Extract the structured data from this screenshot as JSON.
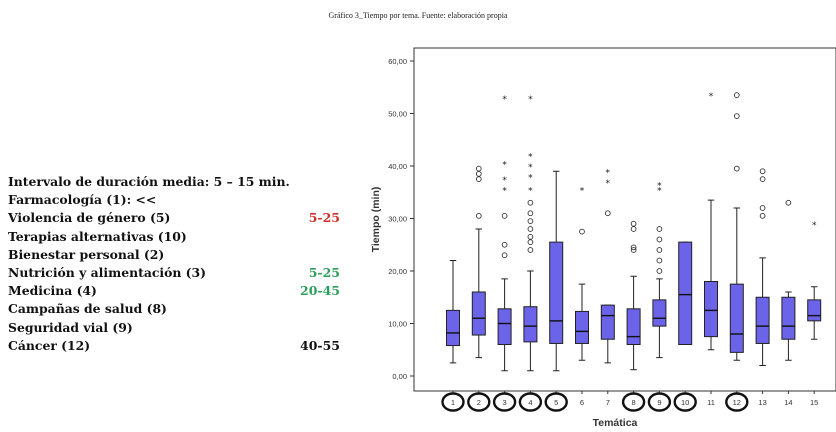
{
  "caption": "Gráfico 3_Tiempo por tema. Fuente: elaboración propia",
  "summary": {
    "interval_label": "Intervalo de duración media: 5 – 15 min.",
    "topics": [
      "Farmacología (1): <<",
      "Violencia de género (5)",
      "Terapias alternativas (10)",
      "Bienestar personal (2)",
      "Nutrición y alimentación (3)",
      "Medicina (4)",
      "Campañas de salud (8)",
      "Seguridad vial (9)",
      "Cáncer (12)"
    ],
    "ranges": [
      {
        "label": "5-25",
        "color": "#d0312d",
        "row": 2
      },
      {
        "label": "5-25",
        "color": "#2e9e5b",
        "row": 5
      },
      {
        "label": "20-45",
        "color": "#2e9e5b",
        "row": 6
      },
      {
        "label": "40-55",
        "color": "#111111",
        "row": 9
      }
    ]
  },
  "chart_data": {
    "type": "boxplot",
    "xlabel": "Temática",
    "ylabel": "Tiempo (min)",
    "ylim": [
      0,
      60
    ],
    "yticks": [
      "0,00",
      "10,00",
      "20,00",
      "30,00",
      "40,00",
      "50,00",
      "60,00"
    ],
    "box_color": "#6b63e8",
    "circled_categories": [
      "1",
      "2",
      "3",
      "4",
      "5",
      "8",
      "9",
      "10",
      "12"
    ],
    "categories": [
      "1",
      "2",
      "3",
      "4",
      "5",
      "6",
      "7",
      "8",
      "9",
      "10",
      "11",
      "12",
      "13",
      "14",
      "15"
    ],
    "boxes": [
      {
        "cat": "1",
        "min": 2.5,
        "q1": 5.8,
        "median": 8.2,
        "q3": 12.5,
        "max": 22,
        "outliers_circle": [],
        "outliers_star": []
      },
      {
        "cat": "2",
        "min": 3.5,
        "q1": 7.8,
        "median": 11,
        "q3": 16,
        "max": 28,
        "outliers_circle": [
          30.5,
          37.5,
          38.5,
          39.5
        ],
        "outliers_star": []
      },
      {
        "cat": "3",
        "min": 1,
        "q1": 6,
        "median": 10,
        "q3": 12.8,
        "max": 18.5,
        "outliers_circle": [
          23,
          25,
          30.5
        ],
        "outliers_star": [
          35.5,
          37.5,
          40.5,
          53
        ]
      },
      {
        "cat": "4",
        "min": 1,
        "q1": 6.5,
        "median": 9.5,
        "q3": 13.2,
        "max": 20,
        "outliers_circle": [
          24,
          25.5,
          26.5,
          28,
          29.5,
          31,
          33
        ],
        "outliers_star": [
          35.5,
          38,
          40,
          42,
          53
        ]
      },
      {
        "cat": "5",
        "min": 1,
        "q1": 6.2,
        "median": 10.5,
        "q3": 25.5,
        "max": 39,
        "outliers_circle": [],
        "outliers_star": []
      },
      {
        "cat": "6",
        "min": 3,
        "q1": 6.2,
        "median": 8.5,
        "q3": 12.3,
        "max": 17.5,
        "outliers_circle": [
          27.5
        ],
        "outliers_star": [
          35.5
        ]
      },
      {
        "cat": "7",
        "min": 2.5,
        "q1": 7,
        "median": 11.5,
        "q3": 13.5,
        "max": 13.5,
        "outliers_circle": [
          31
        ],
        "outliers_star": [
          37,
          39
        ]
      },
      {
        "cat": "8",
        "min": 1.2,
        "q1": 6,
        "median": 7.5,
        "q3": 12.8,
        "max": 19,
        "outliers_circle": [
          24,
          24.5,
          28,
          29
        ],
        "outliers_star": []
      },
      {
        "cat": "9",
        "min": 3.5,
        "q1": 9.5,
        "median": 11,
        "q3": 14.5,
        "max": 18.5,
        "outliers_circle": [
          20,
          22,
          24,
          26,
          28
        ],
        "outliers_star": [
          35.5,
          36.5
        ]
      },
      {
        "cat": "10",
        "min": 6,
        "q1": 6,
        "median": 15.5,
        "q3": 25.5,
        "max": 25.5,
        "outliers_circle": [],
        "outliers_star": []
      },
      {
        "cat": "11",
        "min": 5,
        "q1": 7.5,
        "median": 12.5,
        "q3": 18,
        "max": 33.5,
        "outliers_circle": [],
        "outliers_star": [
          53.5
        ]
      },
      {
        "cat": "12",
        "min": 3,
        "q1": 4.5,
        "median": 8,
        "q3": 17.5,
        "max": 32,
        "outliers_circle": [
          39.5,
          49.5,
          53.5
        ],
        "outliers_star": []
      },
      {
        "cat": "13",
        "min": 2,
        "q1": 6.2,
        "median": 9.5,
        "q3": 15,
        "max": 22.5,
        "outliers_circle": [
          30.5,
          32,
          37.5,
          39
        ],
        "outliers_star": []
      },
      {
        "cat": "14",
        "min": 3,
        "q1": 7,
        "median": 9.5,
        "q3": 15,
        "max": 16,
        "outliers_circle": [
          33
        ],
        "outliers_star": []
      },
      {
        "cat": "15",
        "min": 7,
        "q1": 10.5,
        "median": 11.5,
        "q3": 14.5,
        "max": 17,
        "outliers_circle": [],
        "outliers_star": [
          29
        ]
      }
    ]
  }
}
